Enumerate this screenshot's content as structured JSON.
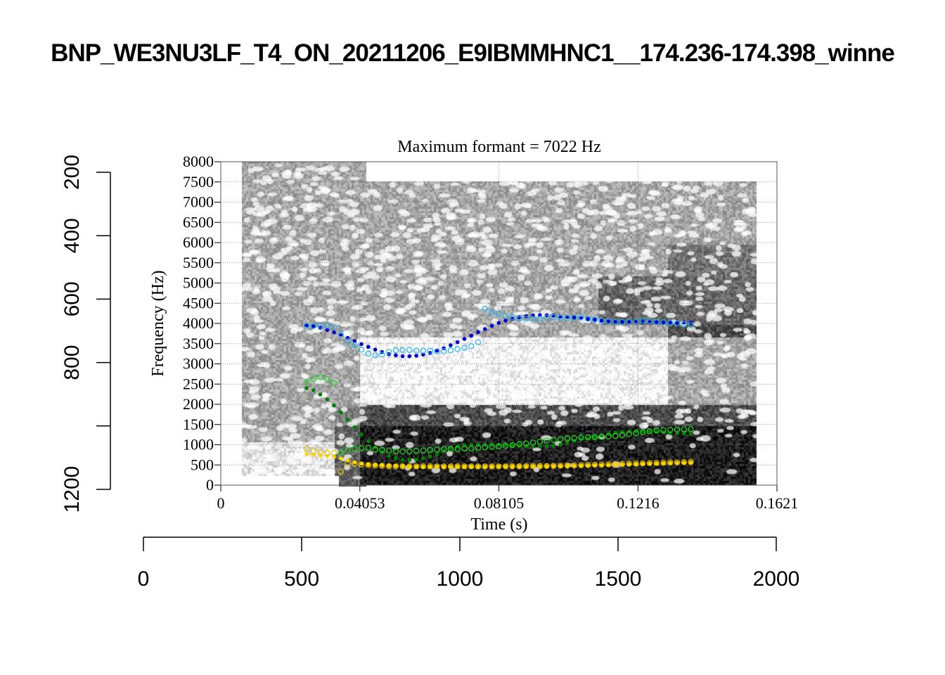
{
  "main_title": "BNP_WE3NU3LF_T4_ON_20211206_E9IBMMHNC1__174.236-174.398_winne",
  "chart_data": {
    "type": "scatter",
    "title": "Maximum formant  =  7022 Hz",
    "xlabel": "Time (s)",
    "ylabel": "Frequency (Hz)",
    "xlim": [
      0,
      0.1621
    ],
    "ylim": [
      0,
      8000
    ],
    "x_ticks": [
      "0",
      "0.04053",
      "0.08105",
      "0.1216",
      "0.1621"
    ],
    "x_tick_values": [
      0,
      0.04053,
      0.08105,
      0.1216,
      0.1621
    ],
    "y_ticks": [
      "0",
      "500",
      "1000",
      "1500",
      "2000",
      "2500",
      "3000",
      "3500",
      "4000",
      "4500",
      "5000",
      "5500",
      "6000",
      "6500",
      "7000",
      "7500",
      "8000"
    ],
    "grid": true,
    "background": "grayscale spectrogram",
    "time": [
      0.025,
      0.027,
      0.029,
      0.031,
      0.033,
      0.035,
      0.037,
      0.039,
      0.041,
      0.043,
      0.045,
      0.047,
      0.049,
      0.051,
      0.053,
      0.055,
      0.057,
      0.059,
      0.061,
      0.063,
      0.065,
      0.067,
      0.069,
      0.071,
      0.073,
      0.075,
      0.077,
      0.079,
      0.081,
      0.083,
      0.085,
      0.087,
      0.089,
      0.091,
      0.093,
      0.095,
      0.097,
      0.099,
      0.101,
      0.103,
      0.105,
      0.107,
      0.109,
      0.111,
      0.113,
      0.115,
      0.117,
      0.119,
      0.121,
      0.123,
      0.125,
      0.127,
      0.129,
      0.131,
      0.133,
      0.135,
      0.137
    ],
    "series": [
      {
        "key": "f1_filled",
        "marker": "filled",
        "color": "#ffd700",
        "values": [
          765,
          754,
          736,
          719,
          696,
          661,
          614,
          568,
          533,
          504,
          495,
          487,
          475,
          470,
          465,
          460,
          458,
          458,
          458,
          458,
          458,
          458,
          458,
          458,
          458,
          458,
          458,
          458,
          460,
          460,
          462,
          462,
          464,
          466,
          468,
          470,
          472,
          475,
          478,
          481,
          487,
          490,
          495,
          500,
          505,
          510,
          515,
          520,
          525,
          530,
          535,
          540,
          545,
          550,
          555,
          558,
          562
        ]
      },
      {
        "key": "f1_open",
        "marker": "open",
        "color": "#e6c200",
        "values": [
          893,
          846,
          812,
          800,
          800,
          330,
          545,
          533,
          510,
          498,
          487,
          478,
          470,
          464,
          464,
          464,
          464,
          464,
          464,
          464,
          464,
          464,
          464,
          464,
          464,
          464,
          464,
          464,
          464,
          464,
          466,
          466,
          468,
          470,
          472,
          475,
          478,
          481,
          485,
          490,
          495,
          500,
          505,
          510,
          515,
          520,
          525,
          530,
          535,
          540,
          545,
          550,
          555,
          560,
          565,
          570,
          574
        ]
      },
      {
        "key": "f2_filled",
        "marker": "filled",
        "color": "#008000",
        "values": [
          2400,
          2348,
          2243,
          2122,
          1971,
          1797,
          1617,
          1432,
          1252,
          1090,
          939,
          823,
          725,
          667,
          626,
          626,
          638,
          667,
          707,
          765,
          841,
          922,
          960,
          990,
          1000,
          1005,
          1010,
          1005,
          1000,
          990,
          985,
          975,
          965,
          960,
          955,
          960,
          975,
          1000,
          1052,
          1098,
          1145,
          1150,
          1188,
          1229,
          1275,
          1304,
          1322,
          1333,
          1333,
          1333,
          1333,
          1322,
          1304,
          1287,
          1275,
          1275,
          1270
        ]
      },
      {
        "key": "f2_open",
        "marker": "open",
        "color": "#22dd22",
        "values": [
          2551,
          2626,
          2672,
          2626,
          2522,
          800,
          864,
          898,
          910,
          922,
          881,
          870,
          858,
          841,
          829,
          835,
          846,
          858,
          870,
          881,
          893,
          898,
          898,
          904,
          910,
          922,
          933,
          945,
          957,
          974,
          991,
          1014,
          1032,
          1055,
          1078,
          1101,
          1119,
          1136,
          1154,
          1165,
          1177,
          1183,
          1188,
          1194,
          1206,
          1217,
          1235,
          1264,
          1287,
          1310,
          1333,
          1351,
          1362,
          1368,
          1374,
          1380,
          1386
        ]
      },
      {
        "key": "f3_filled",
        "marker": "filled",
        "color": "#0000cd",
        "values": [
          3953,
          3930,
          3890,
          3838,
          3780,
          3710,
          3640,
          3565,
          3490,
          3420,
          3351,
          3293,
          3241,
          3212,
          3188,
          3188,
          3200,
          3229,
          3270,
          3327,
          3386,
          3461,
          3536,
          3617,
          3698,
          3785,
          3861,
          3942,
          4012,
          4070,
          4116,
          4157,
          4180,
          4197,
          4203,
          4203,
          4197,
          4174,
          4162,
          4145,
          4128,
          4110,
          4093,
          4070,
          4058,
          4046,
          4035,
          4029,
          4029,
          4029,
          4029,
          4029,
          4029,
          4023,
          4017,
          4023,
          4023
        ]
      },
      {
        "key": "f3_open",
        "marker": "open",
        "color": "#1eb4f0",
        "values": [
          3942,
          3942,
          3942,
          3942,
          3907,
          3733,
          3559,
          3461,
          3351,
          3252,
          3212,
          3229,
          3299,
          3333,
          3345,
          3345,
          3327,
          3327,
          3322,
          3310,
          3316,
          3333,
          3368,
          3397,
          3438,
          3536,
          4365,
          4272,
          4232,
          4186,
          4162,
          4116,
          4116,
          4116,
          4116,
          4145,
          4157,
          4139,
          4133,
          4145,
          4157,
          4116,
          4093,
          4070,
          4046,
          4035,
          4041,
          4046,
          4058,
          4070,
          4058,
          4035,
          4023,
          4012,
          4000,
          3977,
          3960
        ]
      }
    ]
  },
  "left_axis": {
    "ticks": [
      "200",
      "400",
      "600",
      "800",
      "",
      "1200"
    ],
    "tick_values": [
      200,
      400,
      600,
      800,
      1000,
      1200
    ]
  },
  "bottom_axis": {
    "ticks": [
      "0",
      "500",
      "1000",
      "1500",
      "2000"
    ],
    "tick_values": [
      0,
      500,
      1000,
      1500,
      2000
    ]
  }
}
